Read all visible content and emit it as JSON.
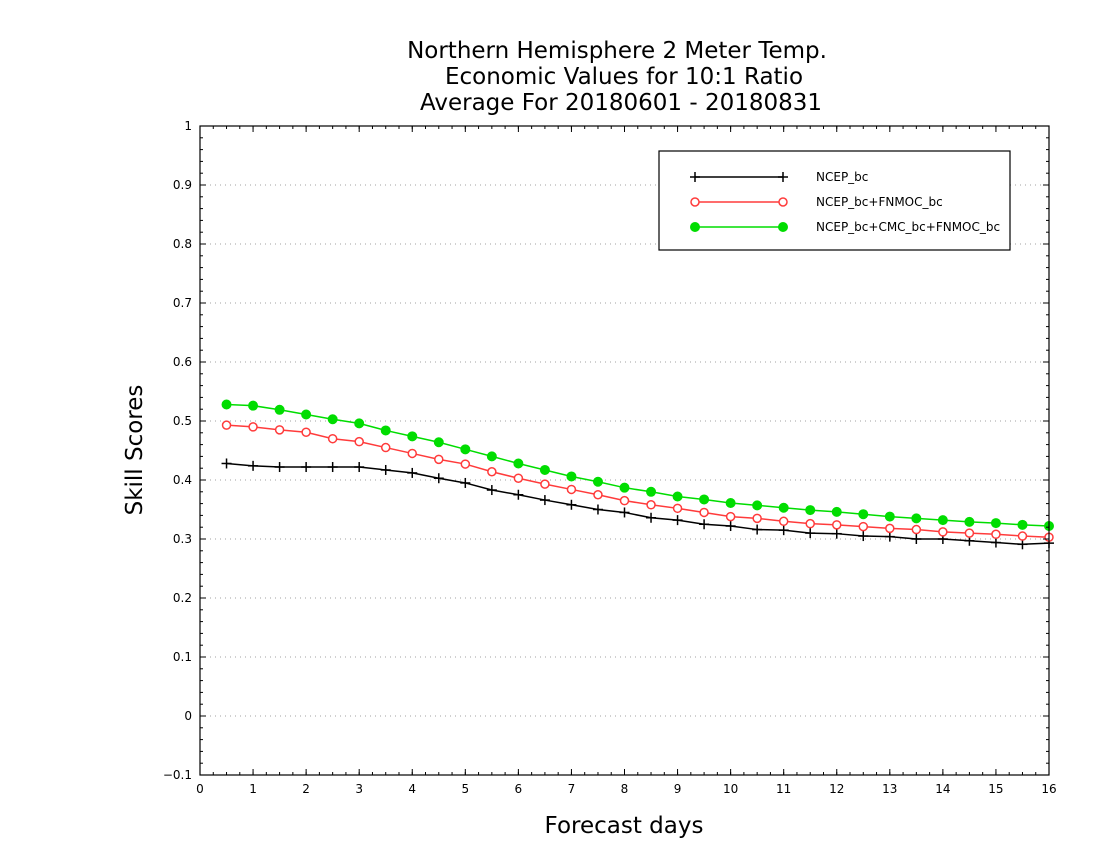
{
  "chart_data": {
    "type": "line",
    "title_lines": [
      "Northern Hemisphere 2 Meter Temp.",
      "Economic Values for 10:1 Ratio",
      "Average For 20180601 - 20180831"
    ],
    "xlabel": "Forecast days",
    "ylabel": "Skill Scores",
    "xlim": [
      0,
      16
    ],
    "ylim": [
      -0.1,
      1
    ],
    "xticks": [
      0,
      1,
      2,
      3,
      4,
      5,
      6,
      7,
      8,
      9,
      10,
      11,
      12,
      13,
      14,
      15,
      16
    ],
    "xtick_labels": [
      "0",
      "1",
      "2",
      "3",
      "4",
      "5",
      "6",
      "7",
      "8",
      "9",
      "10",
      "11",
      "12",
      "13",
      "14",
      "15",
      "16"
    ],
    "yticks": [
      -0.1,
      0,
      0.1,
      0.2,
      0.3,
      0.4,
      0.5,
      0.6,
      0.7,
      0.8,
      0.9,
      1
    ],
    "ytick_labels": [
      "−0.1",
      "0",
      "0.1",
      "0.2",
      "0.3",
      "0.4",
      "0.5",
      "0.6",
      "0.7",
      "0.8",
      "0.9",
      "1"
    ],
    "grid": "horizontal dotted",
    "legend_position": "top-right",
    "x": [
      0.5,
      1,
      1.5,
      2,
      2.5,
      3,
      3.5,
      4,
      4.5,
      5,
      5.5,
      6,
      6.5,
      7,
      7.5,
      8,
      8.5,
      9,
      9.5,
      10,
      10.5,
      11,
      11.5,
      12,
      12.5,
      13,
      13.5,
      14,
      14.5,
      15,
      15.5,
      16
    ],
    "series": [
      {
        "name": "NCEP_bc",
        "color": "#000000",
        "marker": "plus",
        "values": [
          0.428,
          0.424,
          0.422,
          0.422,
          0.422,
          0.422,
          0.417,
          0.412,
          0.403,
          0.395,
          0.383,
          0.375,
          0.366,
          0.358,
          0.35,
          0.345,
          0.336,
          0.332,
          0.325,
          0.322,
          0.316,
          0.315,
          0.31,
          0.309,
          0.305,
          0.304,
          0.3,
          0.3,
          0.297,
          0.294,
          0.291,
          0.293
        ]
      },
      {
        "name": "NCEP_bc+FNMOC_bc",
        "color": "#ff3b3b",
        "marker": "open-circle",
        "values": [
          0.493,
          0.49,
          0.485,
          0.481,
          0.47,
          0.465,
          0.455,
          0.445,
          0.435,
          0.427,
          0.414,
          0.403,
          0.393,
          0.384,
          0.375,
          0.365,
          0.358,
          0.352,
          0.345,
          0.338,
          0.335,
          0.33,
          0.326,
          0.324,
          0.321,
          0.318,
          0.316,
          0.312,
          0.31,
          0.308,
          0.305,
          0.303
        ]
      },
      {
        "name": "NCEP_bc+CMC_bc+FNMOC_bc",
        "color": "#00dd00",
        "marker": "filled-circle",
        "values": [
          0.528,
          0.526,
          0.519,
          0.511,
          0.503,
          0.496,
          0.484,
          0.474,
          0.464,
          0.452,
          0.44,
          0.428,
          0.417,
          0.406,
          0.397,
          0.387,
          0.38,
          0.372,
          0.367,
          0.361,
          0.357,
          0.353,
          0.349,
          0.346,
          0.342,
          0.338,
          0.335,
          0.332,
          0.329,
          0.327,
          0.324,
          0.322
        ]
      }
    ]
  }
}
